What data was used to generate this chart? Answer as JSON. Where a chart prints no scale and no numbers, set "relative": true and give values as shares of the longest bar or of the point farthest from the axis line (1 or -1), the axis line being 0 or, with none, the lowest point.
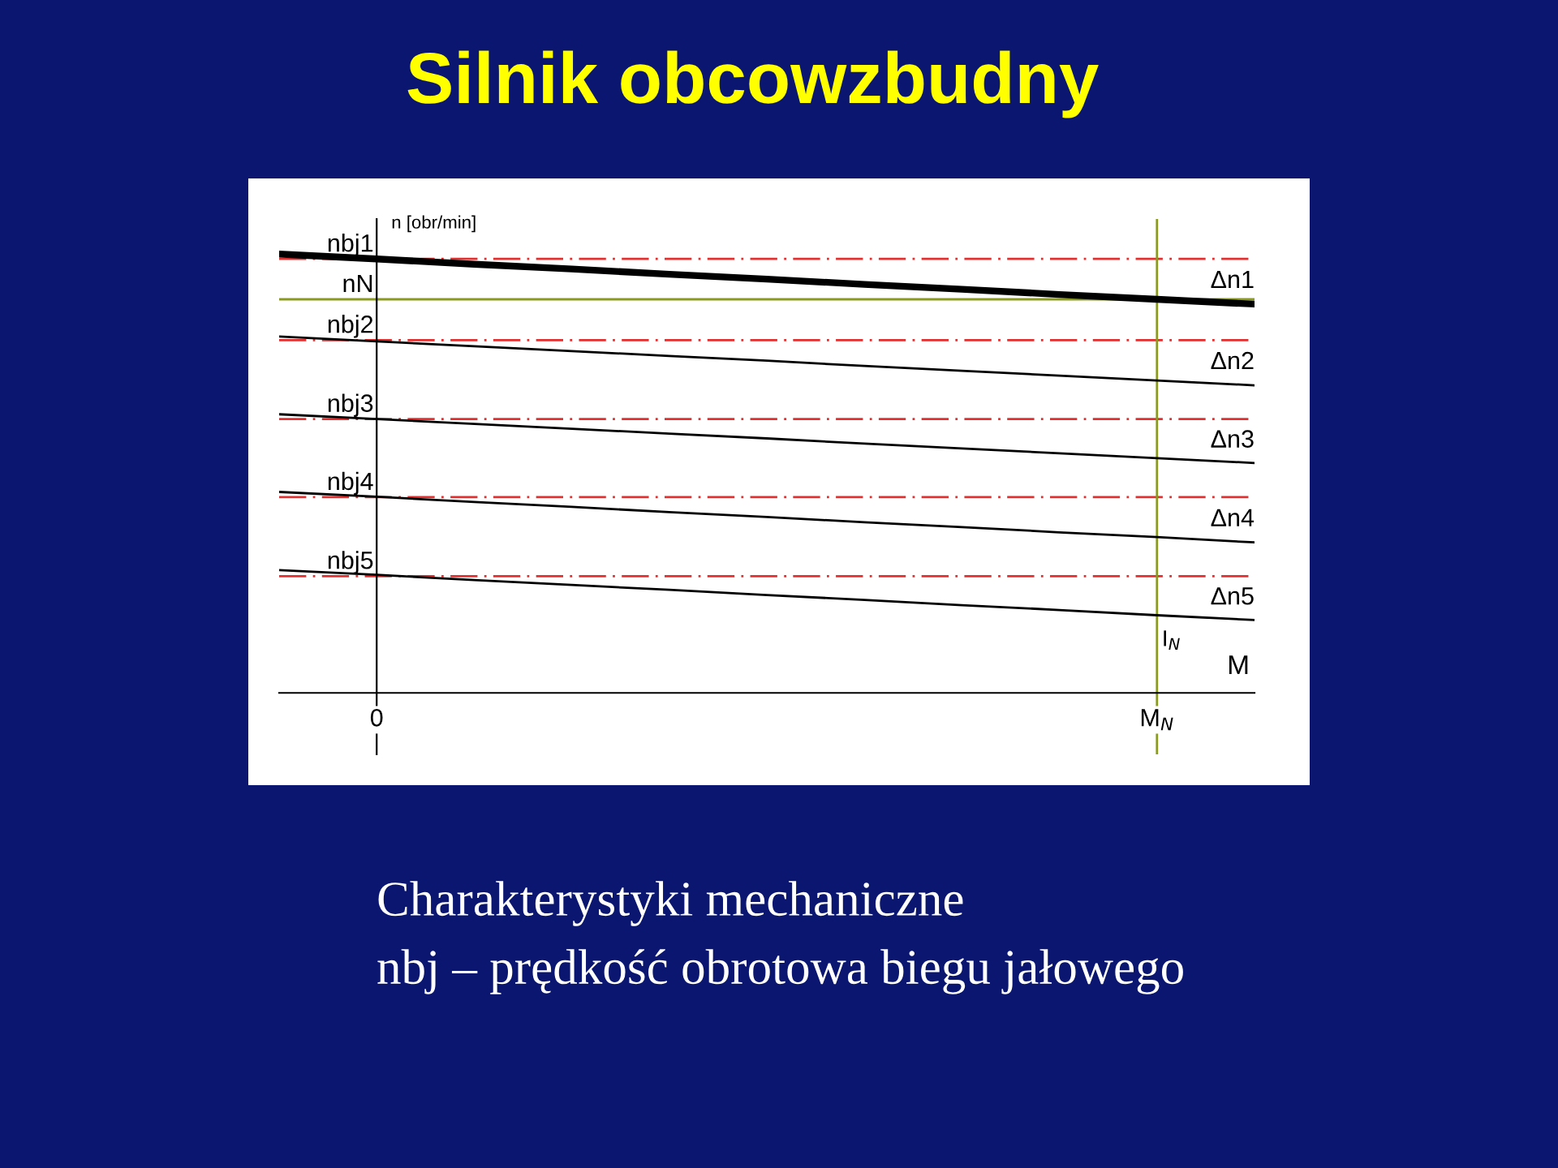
{
  "chart_data": {
    "type": "line",
    "title": "Silnik obcowzbudny",
    "relative": true,
    "xlabel": "M",
    "ylabel": "n [obr/min]",
    "categories": [
      null,
      "0",
      null,
      null,
      null,
      null,
      null,
      null,
      null,
      "M$_{N}$",
      null
    ],
    "series": [
      {
        "color": "#000000",
        "values": [
          1.0,
          0.989,
          0.977,
          0.966,
          0.954,
          0.943,
          0.931,
          0.92,
          0.908,
          0.897,
          0.886
        ]
      },
      {
        "color": "#000000",
        "values": [
          0.812,
          0.801,
          0.79,
          0.779,
          0.768,
          0.757,
          0.745,
          0.734,
          0.723,
          0.712,
          0.701
        ]
      },
      {
        "color": "#000000",
        "values": [
          0.635,
          0.624,
          0.613,
          0.602,
          0.591,
          0.58,
          0.568,
          0.557,
          0.546,
          0.535,
          0.524
        ]
      },
      {
        "color": "#000000",
        "values": [
          0.458,
          0.447,
          0.435,
          0.424,
          0.412,
          0.401,
          0.389,
          0.378,
          0.366,
          0.355,
          0.343
        ]
      },
      {
        "color": "#000000",
        "values": [
          0.28,
          0.269,
          0.257,
          0.246,
          0.235,
          0.223,
          0.212,
          0.2,
          0.189,
          0.177,
          0.166
        ]
      }
    ],
    "ref_lines": [
      {
        "axis": "y",
        "value": 0.989,
        "label": "nbj1",
        "color": "#e03030",
        "line_style": "dashed"
      },
      {
        "axis": "y",
        "value": 0.804,
        "label": "nbj2",
        "color": "#e03030",
        "line_style": "dashed"
      },
      {
        "axis": "y",
        "value": 0.624,
        "label": "nbj3",
        "color": "#e03030",
        "line_style": "dashed"
      },
      {
        "axis": "y",
        "value": 0.446,
        "label": "nbj4",
        "color": "#e03030",
        "line_style": "dashed"
      },
      {
        "axis": "y",
        "value": 0.266,
        "label": "nbj5",
        "color": "#e03030",
        "line_style": "dashed"
      },
      {
        "axis": "y",
        "value": 0.897,
        "label": "nN",
        "color": "#8a9a20",
        "line_style": "solid"
      },
      {
        "axis": "x",
        "value": "M$_{N}$",
        "label": "I$_{N}$",
        "color": "#8a9a20",
        "line_style": "solid"
      }
    ],
    "annotations": [
      "Δn1",
      "Δn2",
      "Δn3",
      "Δn4",
      "Δn5",
      "Charakterystyki mechaniczne",
      "nbj – prędkość obrotowa biegu jałowego"
    ]
  }
}
